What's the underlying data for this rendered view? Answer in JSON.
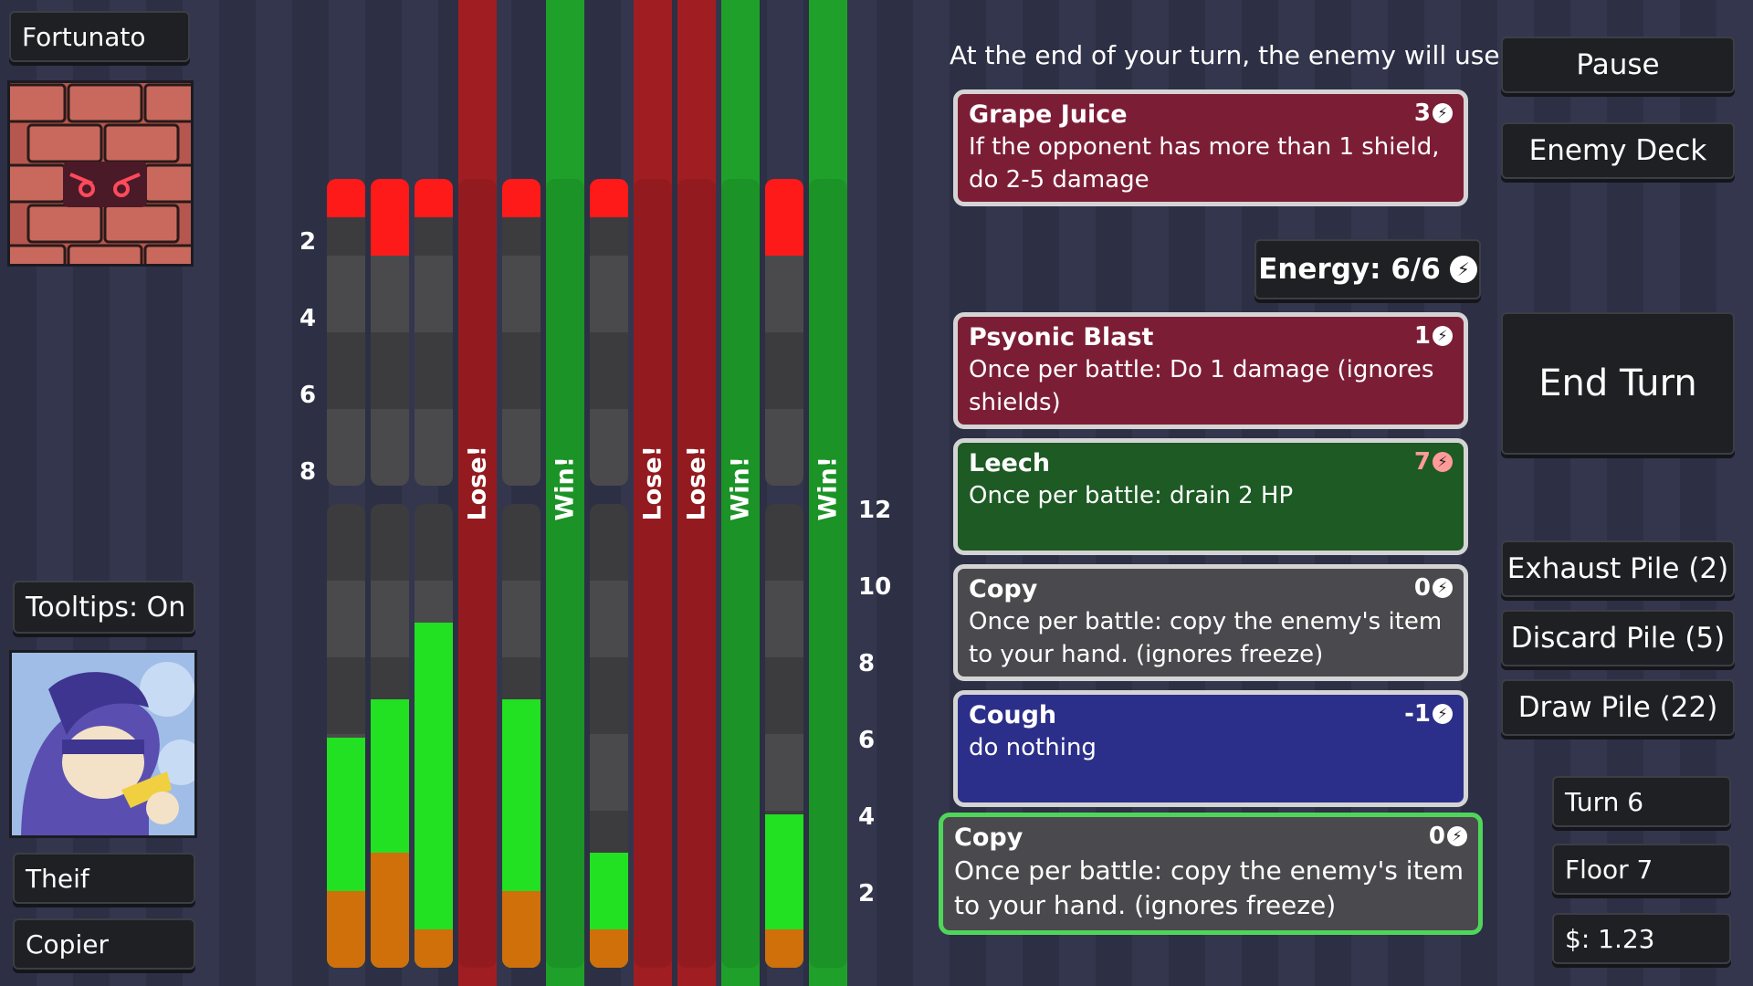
{
  "enemy": {
    "name": "Fortunato"
  },
  "player": {
    "class": "Theif",
    "subclass": "Copier"
  },
  "tooltips": "Tooltips: On",
  "header": "At the end of your turn, the enemy will use:",
  "buttons": {
    "pause": "Pause",
    "enemy_deck": "Enemy Deck",
    "end_turn": "End Turn",
    "exhaust": "Exhaust Pile (2)",
    "discard": "Discard Pile (5)",
    "draw": "Draw Pile (22)"
  },
  "energy": "Energy: 6/6",
  "status": {
    "turn": "Turn 6",
    "floor": "Floor 7",
    "money": "$: 1.23"
  },
  "enemy_card": {
    "name": "Grape Juice",
    "cost": "3",
    "desc": "If the opponent has more than 1 shield, do 2-5 damage"
  },
  "hand": [
    {
      "name": "Psyonic Blast",
      "cost": "1",
      "desc": "Once per battle: Do 1 damage (ignores shields)",
      "color": "red"
    },
    {
      "name": "Leech",
      "cost": "7",
      "desc": "Once per battle: drain 2 HP",
      "color": "green"
    },
    {
      "name": "Copy",
      "cost": "0",
      "desc": "Once per battle: copy the enemy's item to your hand. (ignores freeze)",
      "color": "grey"
    },
    {
      "name": "Cough",
      "cost": "-1",
      "desc": "do nothing",
      "color": "blue"
    },
    {
      "name": "Copy",
      "cost": "0",
      "desc": "Once per battle: copy the enemy's item to your hand. (ignores freeze)",
      "color": "grey",
      "selected": true
    }
  ],
  "axes": {
    "enemy": [
      "2",
      "4",
      "6",
      "8"
    ],
    "player": [
      "12",
      "10",
      "8",
      "6",
      "4",
      "2"
    ]
  },
  "outcome_labels": [
    "Lose!",
    "Win!",
    "Lose!",
    "Lose!",
    "Win!",
    "Win!"
  ],
  "colors": {
    "lose": "#a01e22",
    "win": "#1ea02a",
    "hp_red": "#ff1a1a",
    "hp_green": "#22e022",
    "hp_orange": "#d0700a"
  },
  "lanes": [
    {
      "outcome": null,
      "enemy_damage": 1,
      "player_green": 6,
      "player_orange": 2
    },
    {
      "outcome": null,
      "enemy_damage": 2,
      "player_green": 7,
      "player_orange": 3
    },
    {
      "outcome": null,
      "enemy_damage": 1,
      "player_green": 9,
      "player_orange": 1
    },
    {
      "outcome": "Lose!"
    },
    {
      "outcome": null,
      "enemy_damage": 1,
      "player_green": 7,
      "player_orange": 2
    },
    {
      "outcome": "Win!"
    },
    {
      "outcome": null,
      "enemy_damage": 1,
      "player_green": 3,
      "player_orange": 1
    },
    {
      "outcome": "Lose!"
    },
    {
      "outcome": "Lose!"
    },
    {
      "outcome": "Win!"
    },
    {
      "outcome": null,
      "enemy_damage": 2,
      "player_green": 4,
      "player_orange": 1
    },
    {
      "outcome": "Win!"
    }
  ]
}
